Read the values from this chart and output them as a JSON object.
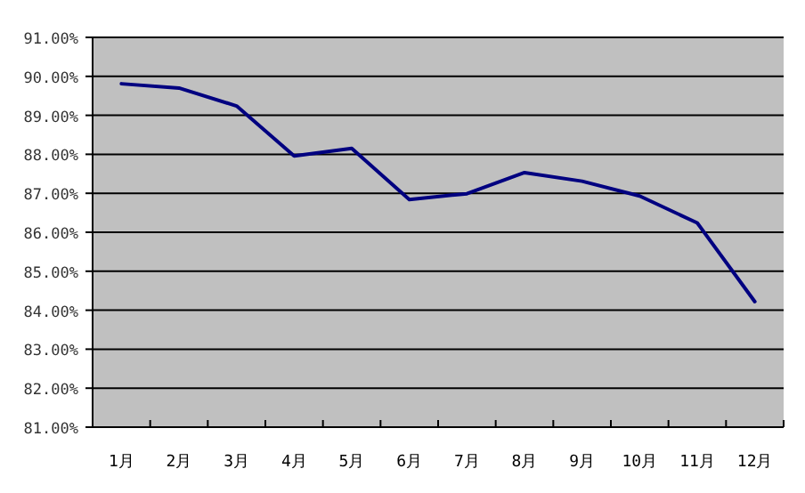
{
  "chart_data": {
    "type": "line",
    "categories": [
      "1月",
      "2月",
      "3月",
      "4月",
      "5月",
      "6月",
      "7月",
      "8月",
      "9月",
      "10月",
      "11月",
      "12月"
    ],
    "series": [
      {
        "color": "#000080",
        "values": [
          89.81,
          89.7,
          89.24,
          87.96,
          88.15,
          86.84,
          86.99,
          87.53,
          87.31,
          86.93,
          86.24,
          84.22
        ]
      }
    ],
    "ylim": [
      81,
      91
    ],
    "yticks": [
      {
        "value": 81,
        "label": "81.00%"
      },
      {
        "value": 82,
        "label": "82.00%"
      },
      {
        "value": 83,
        "label": "83.00%"
      },
      {
        "value": 84,
        "label": "84.00%"
      },
      {
        "value": 85,
        "label": "85.00%"
      },
      {
        "value": 86,
        "label": "86.00%"
      },
      {
        "value": 87,
        "label": "87.00%"
      },
      {
        "value": 88,
        "label": "88.00%"
      },
      {
        "value": 89,
        "label": "89.00%"
      },
      {
        "value": 90,
        "label": "90.00%"
      },
      {
        "value": 91,
        "label": "91.00%"
      }
    ],
    "grid": "y",
    "marker": "none",
    "line_style": "solid"
  }
}
